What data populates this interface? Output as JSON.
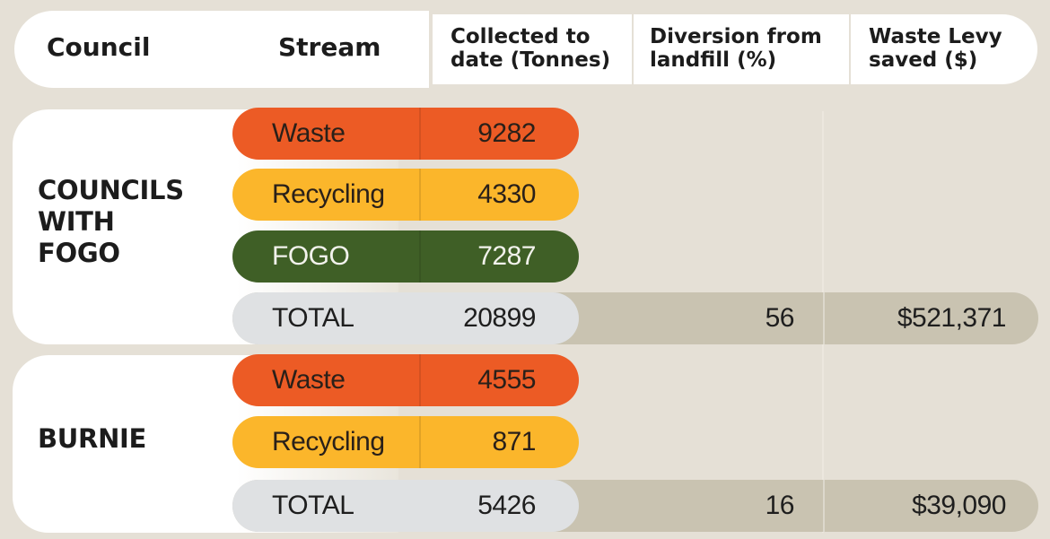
{
  "header": {
    "council": "Council",
    "stream": "Stream",
    "collected_line1": "Collected to",
    "collected_line2": "date (Tonnes)",
    "diversion_line1": "Diversion from",
    "diversion_line2": "landfill (%)",
    "levy_line1": "Waste Levy",
    "levy_line2": "saved ($)"
  },
  "groups": [
    {
      "label_lines": [
        "COUNCILS",
        "WITH",
        "FOGO"
      ],
      "rows": [
        {
          "stream": "Waste",
          "collected": "9282"
        },
        {
          "stream": "Recycling",
          "collected": "4330"
        },
        {
          "stream": "FOGO",
          "collected": "7287"
        }
      ],
      "total": {
        "stream": "TOTAL",
        "collected": "20899",
        "diversion": "56",
        "levy": "$521,371"
      }
    },
    {
      "label_lines": [
        "BURNIE"
      ],
      "rows": [
        {
          "stream": "Waste",
          "collected": "4555"
        },
        {
          "stream": "Recycling",
          "collected": "871"
        }
      ],
      "total": {
        "stream": "TOTAL",
        "collected": "5426",
        "diversion": "16",
        "levy": "$39,090"
      }
    }
  ],
  "colors": {
    "waste": "#ec5b25",
    "recycling": "#fbb62b",
    "fogo": "#3f5f26",
    "total_band": "#c9c3b1",
    "total_pill": "#dfe1e3",
    "background": "#e5e0d6"
  }
}
